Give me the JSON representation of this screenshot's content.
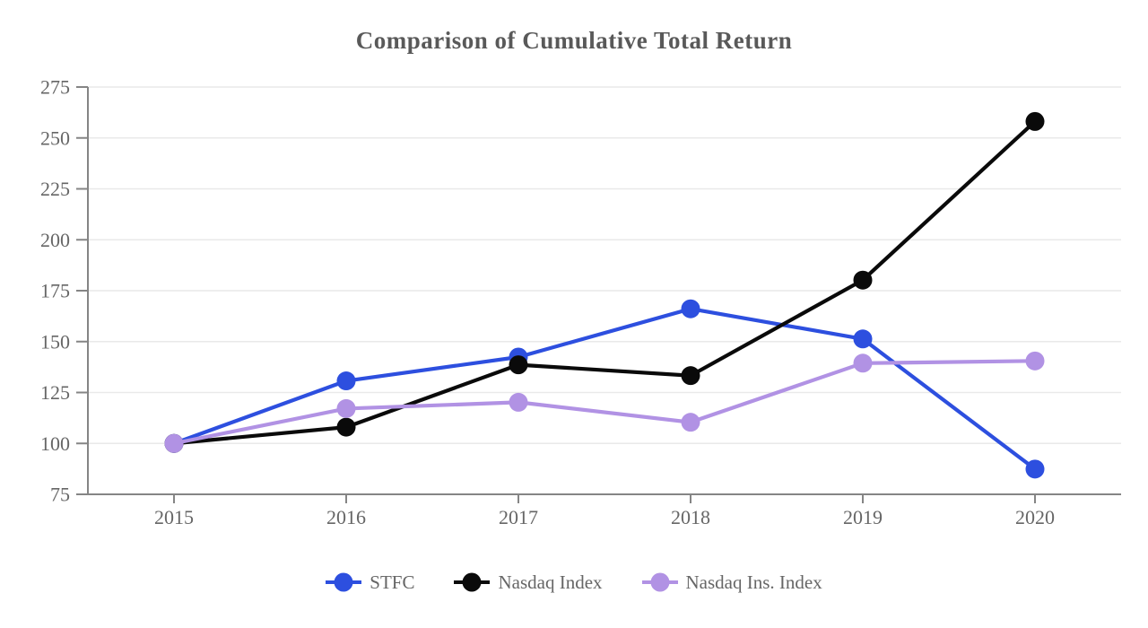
{
  "chart_data": {
    "type": "line",
    "title": "Comparison of Cumulative Total Return",
    "categories": [
      "2015",
      "2016",
      "2017",
      "2018",
      "2019",
      "2020"
    ],
    "series": [
      {
        "name": "STFC",
        "color": "#2d4fdf",
        "values": [
          100,
          130.7,
          142.4,
          166.1,
          151.3,
          87.4
        ]
      },
      {
        "name": "Nasdaq Index",
        "color": "#0a0a0a",
        "values": [
          100,
          108.0,
          138.6,
          133.3,
          180.2,
          258.1
        ]
      },
      {
        "name": "Nasdaq Ins. Index",
        "color": "#b192e4",
        "values": [
          100,
          117.1,
          120.2,
          110.4,
          139.4,
          140.5
        ]
      }
    ],
    "ylim": [
      75,
      275
    ],
    "ytick_step": 25,
    "yticks": [
      75,
      100,
      125,
      150,
      175,
      200,
      225,
      250,
      275
    ],
    "grid": "horizontal",
    "legend_position": "bottom",
    "colors": {
      "title": "#595959",
      "axis_line": "#858585",
      "tick_label": "#666666",
      "gridline": "#e9e9e9",
      "legend_text": "#666666",
      "background": "#ffffff"
    }
  }
}
